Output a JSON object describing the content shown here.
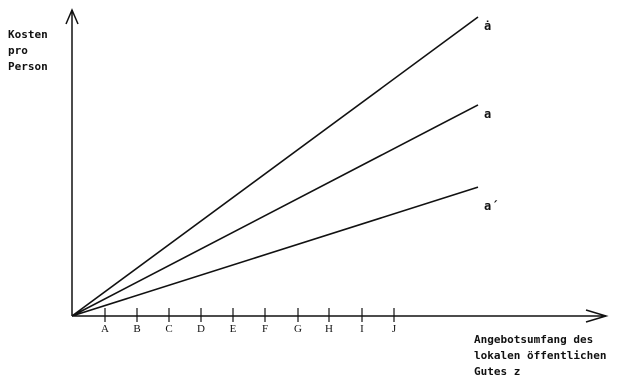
{
  "chart_data": {
    "type": "line",
    "ylabel_lines": [
      "Kosten",
      "pro",
      "Person"
    ],
    "xlabel_lines": [
      "Angebotsumfang des",
      "lokalen öffentlichen",
      "Gutes z"
    ],
    "x_ticks": [
      "A",
      "B",
      "C",
      "D",
      "E",
      "F",
      "G",
      "H",
      "I",
      "J"
    ],
    "grid": false,
    "legend": "none",
    "series": [
      {
        "label": "ȧ",
        "relative_slope": 1.0
      },
      {
        "label": "a",
        "relative_slope": 0.706
      },
      {
        "label": "a´",
        "relative_slope": 0.431
      }
    ]
  }
}
